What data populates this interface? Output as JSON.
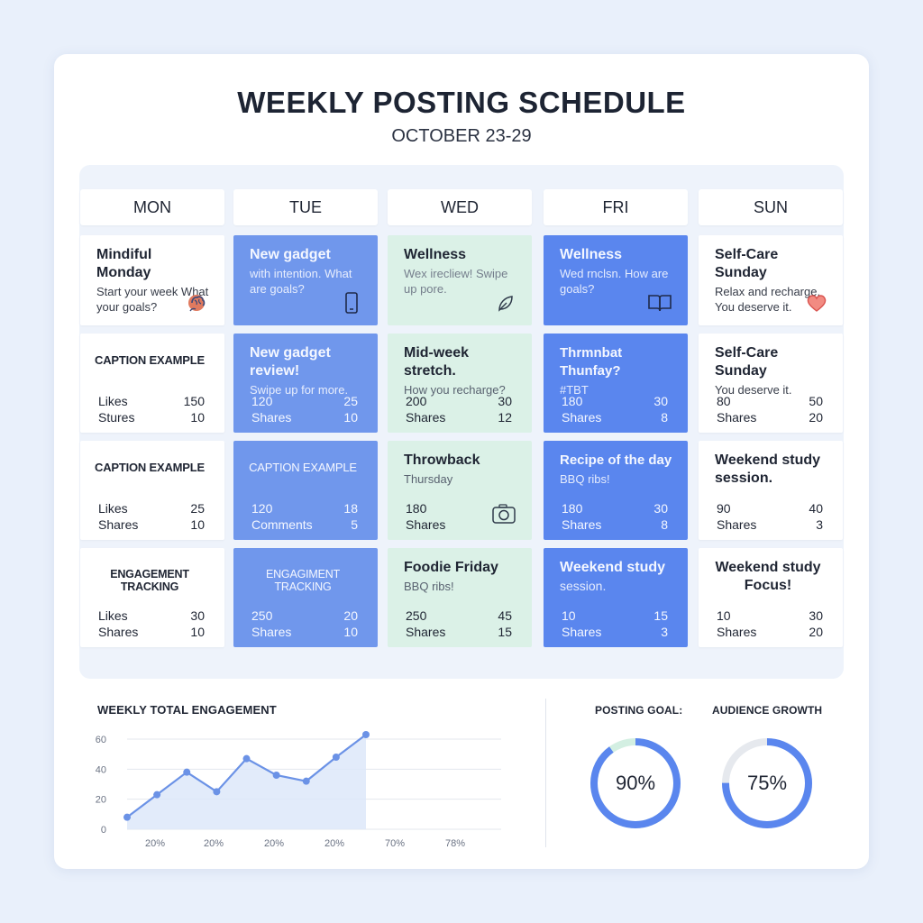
{
  "header": {
    "title": "WEEKLY POSTING SCHEDULE",
    "subtitle": "OCTOBER 23-29"
  },
  "days": [
    "MON",
    "TUE",
    "WED",
    "FRI",
    "SUN"
  ],
  "cells": {
    "r1": [
      {
        "title": "Mindiful Monday",
        "desc": "Start your week What your goals?",
        "icon": "brain-icon"
      },
      {
        "title": "New gadget",
        "desc": "with intention. What are goals?",
        "icon": "phone-icon"
      },
      {
        "title": "Wellness",
        "desc": "Wex irecliew! Swipe up pore.",
        "icon": "leaf-icon"
      },
      {
        "title": "Wellness",
        "desc": "Wed rnclsn. How are goals?",
        "icon": "book-icon"
      },
      {
        "title": "Self-Care Sunday",
        "desc": "Relax and recharge. You deserve it.",
        "icon": "heart-icon"
      }
    ],
    "r2": [
      {
        "caption": "CAPTION EXAMPLE",
        "m1_label": "Likes",
        "m1_value": "150",
        "m2_label": "Stures",
        "m2_value": "10"
      },
      {
        "title": "New gadget review!",
        "desc": "Swipe up for more.",
        "m1_label": "120",
        "m1_value": "25",
        "m2_label": "Shares",
        "m2_value": "10"
      },
      {
        "title": "Mid-week stretch.",
        "desc": "How you recharge?",
        "m1_label": "200",
        "m1_value": "30",
        "m2_label": "Shares",
        "m2_value": "12"
      },
      {
        "title": "Thrmnbat Thunfay?",
        "desc": "#TBT",
        "m1_label": "180",
        "m1_value": "30",
        "m2_label": "Shares",
        "m2_value": "8"
      },
      {
        "title": "Self-Care Sunday",
        "desc": "You deserve it.",
        "m1_label": "80",
        "m1_value": "50",
        "m2_label": "Shares",
        "m2_value": "20"
      }
    ],
    "r3": [
      {
        "caption": "CAPTION EXAMPLE",
        "m1_label": "Likes",
        "m1_value": "25",
        "m2_label": "Shares",
        "m2_value": "10"
      },
      {
        "caption": "CAPTION EXAMPLE",
        "m1_label": "120",
        "m1_value": "18",
        "m2_label": "Comments",
        "m2_value": "5"
      },
      {
        "title": "Throwback",
        "desc": "Thursday",
        "m1_label": "180",
        "m1_value": "",
        "m2_label": "Shares",
        "m2_value": "",
        "icon": "camera-icon"
      },
      {
        "title": "Recipe of the day",
        "desc": "BBQ ribs!",
        "m1_label": "180",
        "m1_value": "30",
        "m2_label": "Shares",
        "m2_value": "8"
      },
      {
        "title": "Weekend study session.",
        "desc": "",
        "m1_label": "90",
        "m1_value": "40",
        "m2_label": "Shares",
        "m2_value": "3"
      }
    ],
    "r4": [
      {
        "caption": "ENGAGEMENT TRACKING",
        "m1_label": "Likes",
        "m1_value": "30",
        "m2_label": "Shares",
        "m2_value": "10"
      },
      {
        "caption": "ENGAGIMENT TRACKING",
        "m1_label": "250",
        "m1_value": "20",
        "m2_label": "Shares",
        "m2_value": "10"
      },
      {
        "title": "Foodie Friday",
        "desc": "BBQ ribs!",
        "m1_label": "250",
        "m1_value": "45",
        "m2_label": "Shares",
        "m2_value": "15"
      },
      {
        "title": "Weekend study",
        "desc": "session.",
        "m1_label": "10",
        "m1_value": "15",
        "m2_label": "Shares",
        "m2_value": "3"
      },
      {
        "title": "Weekend study Focus!",
        "desc": "",
        "m1_label": "10",
        "m1_value": "30",
        "m2_label": "Shares",
        "m2_value": "20"
      }
    ]
  },
  "engagement": {
    "label": "WEEKLY TOTAL ENGAGEMENT",
    "chart_data": {
      "type": "area",
      "title": "WEEKLY TOTAL ENGAGEMENT",
      "y_ticks": [
        "60",
        "40",
        "20",
        "0"
      ],
      "x_ticks": [
        "20%",
        "20%",
        "20%",
        "20%",
        "70%",
        "78%"
      ],
      "ylim": [
        0,
        60
      ],
      "grid": true,
      "values": [
        8,
        23,
        38,
        25,
        47,
        36,
        32,
        48,
        63
      ],
      "values_note_free": true
    }
  },
  "goals": {
    "posting_label": "POSTING GOAL:",
    "posting_value": "90%",
    "posting_fraction": 0.9,
    "growth_label": "AUDIENCE GROWTH",
    "growth_value": "75%",
    "growth_fraction": 0.75,
    "accent": "#5a86ee",
    "remainder_posting": "#d3efe2",
    "remainder_growth": "#e6e9ee"
  }
}
